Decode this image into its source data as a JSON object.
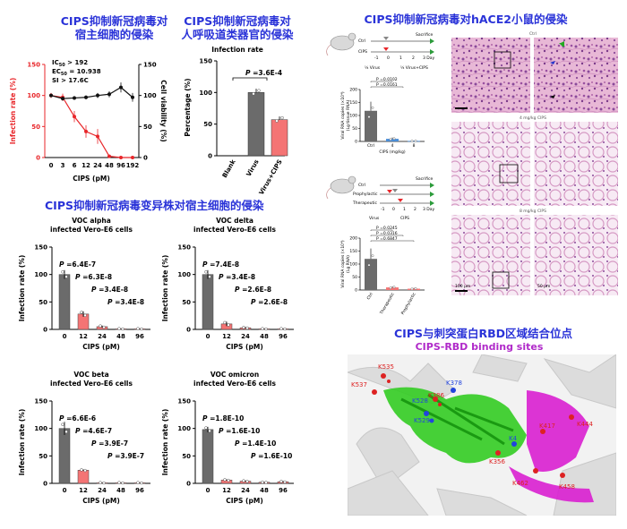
{
  "headings": {
    "cell_infection": [
      "CIPS抑制新冠病毒对",
      "宿主细胞的侵染"
    ],
    "respiratory": [
      "CIPS抑制新冠病毒对",
      "人呼吸道类器官的侵染"
    ],
    "mice": "CIPS抑制新冠病毒对hACE2小鼠的侵染",
    "variants": "CIPS抑制新冠病毒变异株对宿主细胞的侵染",
    "rbd": "CIPS与刺突蛋白RBD区域结合位点",
    "rbd_sub": "CIPS-RBD binding sites"
  },
  "colors": {
    "heading": "#2a33d8",
    "subheading": "#b02ac9",
    "infection": "#e8262a",
    "gray_bar": "#6b6b6b",
    "red_bar": "#f47474",
    "rbd_green": "#33cc22",
    "rbd_magenta": "#d91fd0"
  },
  "chart_data": [
    {
      "id": "dose",
      "type": "line",
      "stats": [
        "IC",
        "50",
        " > 192",
        "EC",
        "50",
        " = 10.938",
        "SI > 17.6C"
      ],
      "x": [
        "0",
        "3",
        "6",
        "12",
        "24",
        "48",
        "96",
        "192"
      ],
      "xlabel": "CIPS (pM)",
      "ylabel": "Infection rate (%)",
      "y2label": "Cell viability (%)",
      "ylim": [
        0,
        150
      ],
      "yticks": [
        0,
        50,
        100,
        150
      ],
      "series": [
        {
          "axis": "left",
          "color": "#e8262a",
          "values": [
            100,
            97,
            66,
            42,
            34,
            2,
            0,
            0
          ],
          "errors": [
            4,
            6,
            9,
            10,
            12,
            2,
            0,
            0
          ]
        },
        {
          "axis": "right",
          "color": "#111111",
          "values": [
            100,
            95,
            96,
            97,
            100,
            102,
            113,
            97
          ],
          "errors": [
            2,
            3,
            3,
            3,
            4,
            5,
            8,
            7
          ]
        }
      ]
    },
    {
      "id": "organoid",
      "type": "bar",
      "title": "Infection rate",
      "ylabel": "Percentage (%)",
      "categories": [
        "Blank",
        "Virus",
        "Virus+CIPS"
      ],
      "values": [
        0,
        100,
        57
      ],
      "errors": [
        0,
        6,
        5
      ],
      "ylim": [
        0,
        150
      ],
      "yticks": [
        0,
        50,
        100,
        150
      ],
      "colors": [
        "#6b6b6b",
        "#6b6b6b",
        "#f47474"
      ],
      "annotation": {
        "label": "P",
        "value": " =3.6E-4"
      }
    },
    {
      "id": "alpha",
      "type": "bar",
      "title": [
        "VOC alpha",
        "infected Vero-E6 cells"
      ],
      "xlabel": "CIPS (pM)",
      "ylabel": "Infection rate (%)",
      "categories": [
        "0",
        "12",
        "24",
        "48",
        "96"
      ],
      "values": [
        100,
        28,
        5,
        1,
        1
      ],
      "errors": [
        8,
        5,
        2,
        0.5,
        0.5
      ],
      "ylim": [
        0,
        150
      ],
      "yticks": [
        0,
        50,
        100,
        150
      ],
      "pvalues": [
        " =6.4E-7",
        " =6.3E-8",
        " =3.4E-8",
        " =3.4E-8"
      ]
    },
    {
      "id": "delta",
      "type": "bar",
      "title": [
        "VOC delta",
        "infected Vero-E6 cells"
      ],
      "xlabel": "CIPS (pM)",
      "ylabel": "Infection rate (%)",
      "categories": [
        "0",
        "12",
        "24",
        "48",
        "96"
      ],
      "values": [
        100,
        10,
        3,
        1,
        1
      ],
      "errors": [
        8,
        4,
        1,
        0.5,
        0.5
      ],
      "ylim": [
        0,
        150
      ],
      "yticks": [
        0,
        50,
        100,
        150
      ],
      "pvalues": [
        " =7.4E-8",
        " =3.4E-8",
        " =2.6E-8",
        " =2.6E-8"
      ]
    },
    {
      "id": "beta",
      "type": "bar",
      "title": [
        "VOC beta",
        "infected Vero-E6 cells"
      ],
      "xlabel": "CIPS (pM)",
      "ylabel": "Infection rate (%)",
      "categories": [
        "0",
        "12",
        "24",
        "48",
        "96"
      ],
      "values": [
        100,
        24,
        1,
        1,
        1
      ],
      "errors": [
        12,
        1,
        0.5,
        0.5,
        0.5
      ],
      "ylim": [
        0,
        150
      ],
      "yticks": [
        0,
        50,
        100,
        150
      ],
      "pvalues": [
        " =6.6E-6",
        " =4.6E-7",
        " =3.9E-7",
        " =3.9E-7"
      ]
    },
    {
      "id": "omicron",
      "type": "bar",
      "title": [
        "VOC omicron",
        "infected Vero-E6 cells"
      ],
      "xlabel": "CIPS (pM)",
      "ylabel": "Infection rate (%)",
      "categories": [
        "0",
        "12",
        "24",
        "48",
        "96"
      ],
      "values": [
        98,
        6,
        4,
        2,
        3
      ],
      "errors": [
        5,
        1,
        1,
        0.5,
        1
      ],
      "ylim": [
        0,
        150
      ],
      "yticks": [
        0,
        50,
        100,
        150
      ],
      "pvalues": [
        " =1.8E-10",
        " =1.6E-10",
        " =1.4E-10",
        " =1.6E-10"
      ]
    },
    {
      "id": "mouse1",
      "type": "bar",
      "ylabel": [
        "Viral RNA copies (×10⁴)",
        "(Lg tissue RNA)"
      ],
      "xlabel": "CIPS (mg/kg)",
      "categories": [
        "Ctrl",
        "4",
        "8"
      ],
      "values": [
        118,
        10,
        2
      ],
      "errors": [
        35,
        5,
        1
      ],
      "ylim": [
        0,
        200
      ],
      "yticks": [
        0,
        50,
        100,
        150,
        200
      ],
      "colors": [
        "#6b6b6b",
        "#4a8ed8",
        "#4a8ed8"
      ],
      "pvalues": [
        "P =0.0102",
        "P =0.0161"
      ]
    },
    {
      "id": "mouse2",
      "type": "bar",
      "ylabel": [
        "Viral RNA copies (×10⁴)",
        "(Lg RNA)"
      ],
      "categories": [
        "Ctrl",
        "Therapeutic",
        "Prophylactic"
      ],
      "values": [
        120,
        10,
        5
      ],
      "errors": [
        40,
        4,
        3
      ],
      "ylim": [
        0,
        200
      ],
      "yticks": [
        0,
        50,
        100,
        150,
        200
      ],
      "colors": [
        "#6b6b6b",
        "#f47474",
        "#f47474"
      ],
      "pvalues": [
        "P =0.0245",
        "P =0.0316",
        "P =0.6847"
      ]
    }
  ],
  "schematic1": {
    "rows": [
      "Ctrl",
      "CIPS"
    ],
    "end": "Sacrifice",
    "days": [
      "-1",
      "0",
      "1",
      "2",
      "3 Day"
    ],
    "legend": [
      "¼ Virus",
      "¼ Virus+CIPS"
    ]
  },
  "schematic2": {
    "rows": [
      "Ctrl",
      "Prophylactic",
      "Therapeutic"
    ],
    "end": "Sacrifice",
    "days": [
      "-1",
      "0",
      "1",
      "2",
      "3 Day"
    ],
    "legend": [
      "Virus",
      "CIPS"
    ]
  },
  "histology": {
    "rows": [
      "Ctrl",
      "4 mg/kg CIPS",
      "8 mg/kg CIPS"
    ],
    "scale": [
      "100 μm",
      "50 μm"
    ]
  },
  "rbd_sites": {
    "red": [
      "K535",
      "K537",
      "K386",
      "K417",
      "K444",
      "K356",
      "K462",
      "K458"
    ],
    "blue": [
      "K528",
      "K529",
      "K378",
      "K4"
    ]
  }
}
